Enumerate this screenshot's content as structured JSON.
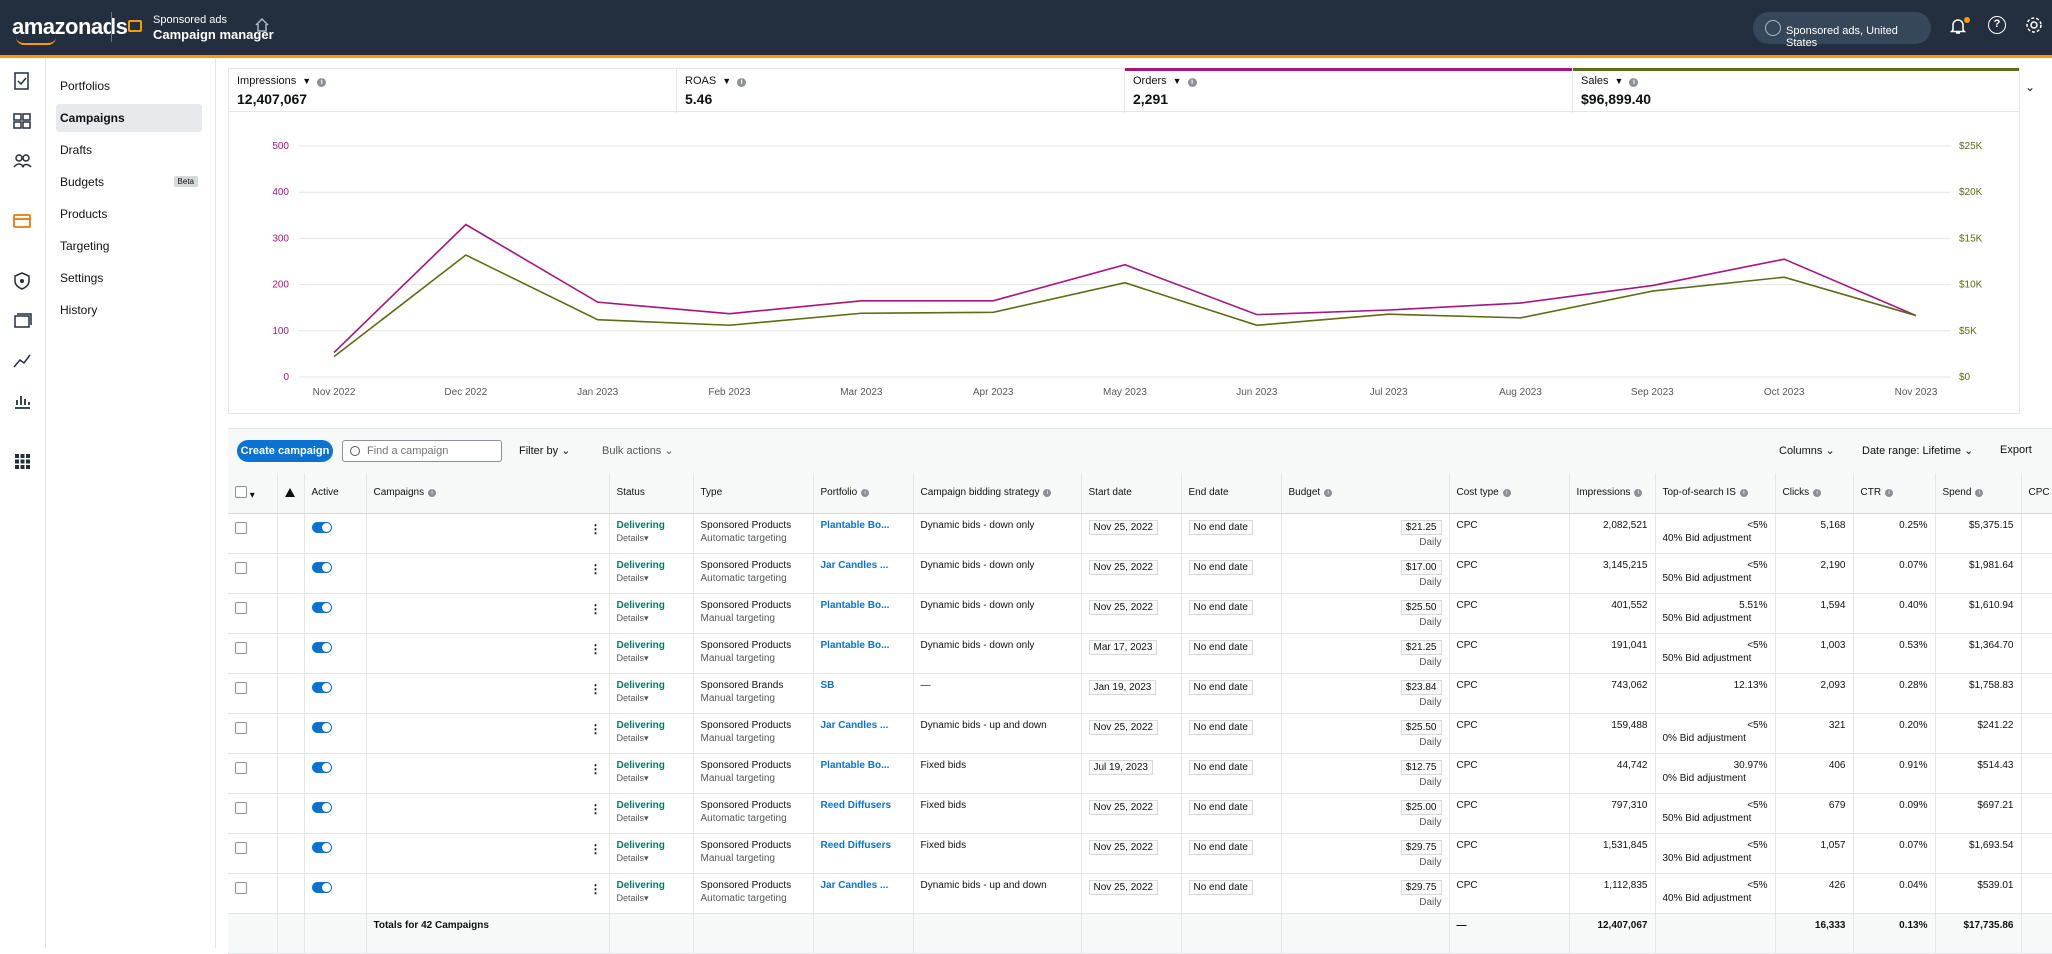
{
  "header": {
    "logo": "amazonads",
    "product_title": "Sponsored ads",
    "product_subtitle": "Campaign manager",
    "marketplace": "Sponsored ads, United States"
  },
  "sidenav": {
    "items": [
      {
        "label": "Portfolios"
      },
      {
        "label": "Campaigns"
      },
      {
        "label": "Drafts"
      },
      {
        "label": "Budgets",
        "badge": "Beta"
      },
      {
        "label": "Products"
      },
      {
        "label": "Targeting"
      },
      {
        "label": "Settings"
      },
      {
        "label": "History"
      }
    ]
  },
  "metrics": [
    {
      "label": "Impressions",
      "value": "12,407,067",
      "color": ""
    },
    {
      "label": "ROAS",
      "value": "5.46",
      "color": ""
    },
    {
      "label": "Orders",
      "value": "2,291",
      "color": "#a7137f"
    },
    {
      "label": "Sales",
      "value": "$96,899.40",
      "color": "#5b6d15"
    }
  ],
  "chart_data": {
    "type": "line",
    "x": [
      "Nov 2022",
      "Dec 2022",
      "Jan 2023",
      "Feb 2023",
      "Mar 2023",
      "Apr 2023",
      "May 2023",
      "Jun 2023",
      "Jul 2023",
      "Aug 2023",
      "Sep 2023",
      "Oct 2023",
      "Nov 2023"
    ],
    "left_axis": {
      "ticks": [
        "500",
        "400",
        "300",
        "200",
        "100",
        "0"
      ],
      "ylim": [
        0,
        500
      ],
      "color": "#a7137f"
    },
    "right_axis": {
      "ticks": [
        "$25K",
        "$20K",
        "$15K",
        "$10K",
        "$5K",
        "$0"
      ],
      "ylim": [
        0,
        25000
      ],
      "color": "#5b6d15"
    },
    "series": [
      {
        "name": "Orders",
        "axis": "left",
        "color": "#a7137f",
        "values": [
          53,
          330,
          162,
          137,
          165,
          165,
          243,
          135,
          145,
          160,
          198,
          255,
          133
        ]
      },
      {
        "name": "Sales",
        "axis": "right",
        "color": "#5b6d15",
        "values": [
          2200,
          13200,
          6200,
          5600,
          6900,
          7000,
          10200,
          5600,
          6800,
          6400,
          9300,
          10800,
          6650
        ]
      }
    ],
    "grid": true
  },
  "toolbar": {
    "create_label": "Create campaign",
    "search_placeholder": "Find a campaign",
    "filter_label": "Filter by",
    "bulk_label": "Bulk actions",
    "columns_label": "Columns",
    "date_range_label": "Date range: Lifetime",
    "export_label": "Export"
  },
  "table": {
    "headers": {
      "active": "Active",
      "campaigns": "Campaigns",
      "status": "Status",
      "type": "Type",
      "portfolio": "Portfolio",
      "bidding": "Campaign bidding strategy",
      "start": "Start date",
      "end": "End date",
      "budget": "Budget",
      "cost_type": "Cost type",
      "impressions": "Impressions",
      "tos": "Top-of-search IS",
      "clicks": "Clicks",
      "ctr": "CTR",
      "spend": "Spend",
      "cpc": "CPC"
    },
    "rows": [
      {
        "status": "Delivering",
        "details": "Details",
        "type": "Sponsored Products",
        "targeting": "Automatic targeting",
        "portfolio": "Plantable Bo...",
        "bidding": "Dynamic bids - down only",
        "start": "Nov 25, 2022",
        "end": "No end date",
        "budget": "$21.25",
        "budget_period": "Daily",
        "cost_type": "CPC",
        "impressions": "2,082,521",
        "tos": "<5%",
        "bid_adj": "40% Bid adjustment",
        "clicks": "5,168",
        "ctr": "0.25%",
        "spend": "$5,375.15"
      },
      {
        "status": "Delivering",
        "details": "Details",
        "type": "Sponsored Products",
        "targeting": "Automatic targeting",
        "portfolio": "Jar Candles ...",
        "bidding": "Dynamic bids - down only",
        "start": "Nov 25, 2022",
        "end": "No end date",
        "budget": "$17.00",
        "budget_period": "Daily",
        "cost_type": "CPC",
        "impressions": "3,145,215",
        "tos": "<5%",
        "bid_adj": "50% Bid adjustment",
        "clicks": "2,190",
        "ctr": "0.07%",
        "spend": "$1,981.64"
      },
      {
        "status": "Delivering",
        "details": "Details",
        "type": "Sponsored Products",
        "targeting": "Manual targeting",
        "portfolio": "Plantable Bo...",
        "bidding": "Dynamic bids - down only",
        "start": "Nov 25, 2022",
        "end": "No end date",
        "budget": "$25.50",
        "budget_period": "Daily",
        "cost_type": "CPC",
        "impressions": "401,552",
        "tos": "5.51%",
        "bid_adj": "50% Bid adjustment",
        "clicks": "1,594",
        "ctr": "0.40%",
        "spend": "$1,610.94"
      },
      {
        "status": "Delivering",
        "details": "Details",
        "type": "Sponsored Products",
        "targeting": "Manual targeting",
        "portfolio": "Plantable Bo...",
        "bidding": "Dynamic bids - down only",
        "start": "Mar 17, 2023",
        "end": "No end date",
        "budget": "$21.25",
        "budget_period": "Daily",
        "cost_type": "CPC",
        "impressions": "191,041",
        "tos": "<5%",
        "bid_adj": "50% Bid adjustment",
        "clicks": "1,003",
        "ctr": "0.53%",
        "spend": "$1,364.70"
      },
      {
        "status": "Delivering",
        "details": "Details",
        "type": "Sponsored Brands",
        "targeting": "Manual targeting",
        "portfolio": "SB",
        "bidding": "—",
        "start": "Jan 19, 2023",
        "end": "No end date",
        "budget": "$23.84",
        "budget_period": "Daily",
        "cost_type": "CPC",
        "impressions": "743,062",
        "tos": "12.13%",
        "bid_adj": "",
        "clicks": "2,093",
        "ctr": "0.28%",
        "spend": "$1,758.83"
      },
      {
        "status": "Delivering",
        "details": "Details",
        "type": "Sponsored Products",
        "targeting": "Manual targeting",
        "portfolio": "Jar Candles ...",
        "bidding": "Dynamic bids - up and down",
        "start": "Nov 25, 2022",
        "end": "No end date",
        "budget": "$25.50",
        "budget_period": "Daily",
        "cost_type": "CPC",
        "impressions": "159,488",
        "tos": "<5%",
        "bid_adj": "0% Bid adjustment",
        "clicks": "321",
        "ctr": "0.20%",
        "spend": "$241.22"
      },
      {
        "status": "Delivering",
        "details": "Details",
        "type": "Sponsored Products",
        "targeting": "Manual targeting",
        "portfolio": "Plantable Bo...",
        "bidding": "Fixed bids",
        "start": "Jul 19, 2023",
        "end": "No end date",
        "budget": "$12.75",
        "budget_period": "Daily",
        "cost_type": "CPC",
        "impressions": "44,742",
        "tos": "30.97%",
        "bid_adj": "0% Bid adjustment",
        "clicks": "406",
        "ctr": "0.91%",
        "spend": "$514.43"
      },
      {
        "status": "Delivering",
        "details": "Details",
        "type": "Sponsored Products",
        "targeting": "Automatic targeting",
        "portfolio": "Reed Diffusers",
        "bidding": "Fixed bids",
        "start": "Nov 25, 2022",
        "end": "No end date",
        "budget": "$25.00",
        "budget_period": "Daily",
        "cost_type": "CPC",
        "impressions": "797,310",
        "tos": "<5%",
        "bid_adj": "50% Bid adjustment",
        "clicks": "679",
        "ctr": "0.09%",
        "spend": "$697.21"
      },
      {
        "status": "Delivering",
        "details": "Details",
        "type": "Sponsored Products",
        "targeting": "Manual targeting",
        "portfolio": "Reed Diffusers",
        "bidding": "Fixed bids",
        "start": "Nov 25, 2022",
        "end": "No end date",
        "budget": "$29.75",
        "budget_period": "Daily",
        "cost_type": "CPC",
        "impressions": "1,531,845",
        "tos": "<5%",
        "bid_adj": "30% Bid adjustment",
        "clicks": "1,057",
        "ctr": "0.07%",
        "spend": "$1,693.54"
      },
      {
        "status": "Delivering",
        "details": "Details",
        "type": "Sponsored Products",
        "targeting": "Automatic targeting",
        "portfolio": "Jar Candles ...",
        "bidding": "Dynamic bids - up and down",
        "start": "Nov 25, 2022",
        "end": "No end date",
        "budget": "$29.75",
        "budget_period": "Daily",
        "cost_type": "CPC",
        "impressions": "1,112,835",
        "tos": "<5%",
        "bid_adj": "40% Bid adjustment",
        "clicks": "426",
        "ctr": "0.04%",
        "spend": "$539.01"
      }
    ],
    "totals": {
      "label": "Totals for 42 Campaigns",
      "cost_type": "—",
      "impressions": "12,407,067",
      "clicks": "16,333",
      "ctr": "0.13%",
      "spend": "$17,735.86"
    }
  }
}
